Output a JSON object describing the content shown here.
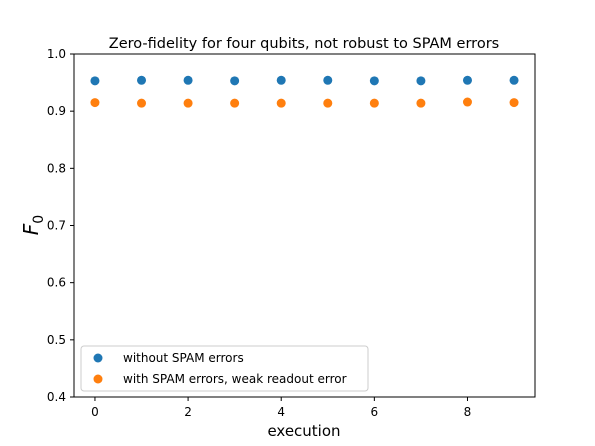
{
  "chart_data": {
    "type": "scatter",
    "title": "Zero-fidelity for four qubits, not robust to SPAM errors",
    "xlabel": "execution",
    "ylabel_main": "F",
    "ylabel_sub": "0",
    "xlim": [
      -0.45,
      9.45
    ],
    "ylim": [
      0.4,
      1.0
    ],
    "xticks": [
      0,
      2,
      4,
      6,
      8
    ],
    "xtick_labels": [
      "0",
      "2",
      "4",
      "6",
      "8"
    ],
    "yticks": [
      0.4,
      0.5,
      0.6,
      0.7,
      0.8,
      0.9,
      1.0
    ],
    "ytick_labels": [
      "0.4",
      "0.5",
      "0.6",
      "0.7",
      "0.8",
      "0.9",
      "1.0"
    ],
    "grid": false,
    "legend_position": "lower-left",
    "series": [
      {
        "name": "without SPAM errors",
        "color": "#1f77b4",
        "x": [
          0,
          1,
          2,
          3,
          4,
          5,
          6,
          7,
          8,
          9
        ],
        "y": [
          0.953,
          0.954,
          0.954,
          0.953,
          0.954,
          0.954,
          0.953,
          0.953,
          0.954,
          0.954
        ]
      },
      {
        "name": "with SPAM errors, weak readout error",
        "color": "#ff7f0e",
        "x": [
          0,
          1,
          2,
          3,
          4,
          5,
          6,
          7,
          8,
          9
        ],
        "y": [
          0.915,
          0.914,
          0.914,
          0.914,
          0.914,
          0.914,
          0.914,
          0.914,
          0.916,
          0.915
        ]
      }
    ]
  }
}
